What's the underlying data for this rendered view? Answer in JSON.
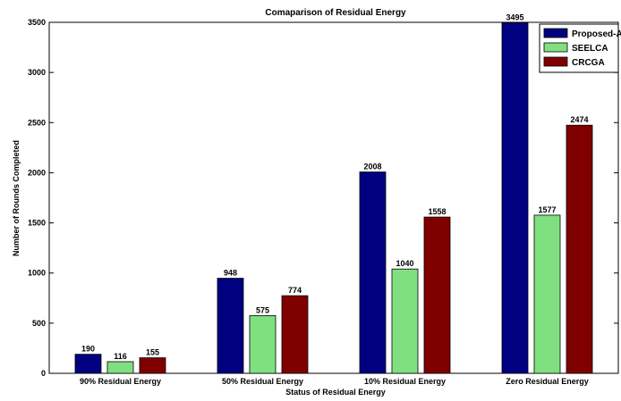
{
  "chart_data": {
    "type": "bar",
    "title": "Comaparison of Residual Energy",
    "xlabel": "Status of Residual Energy",
    "ylabel": "Number of Rounds Completed",
    "categories": [
      "90% Residual Energy",
      "50% Residual Energy",
      "10% Residual Energy",
      "Zero Residual Energy"
    ],
    "ylim": [
      0,
      3500
    ],
    "yticks": [
      0,
      500,
      1000,
      1500,
      2000,
      2500,
      3000,
      3500
    ],
    "ytick_labels": [
      "0",
      "500",
      "1000",
      "1500",
      "2000",
      "2500",
      "3000",
      "3500"
    ],
    "legend_position": "top-right",
    "grid": false,
    "series": [
      {
        "name": "Proposed-AHDR",
        "color": "#000080",
        "values": [
          190,
          948,
          2008,
          3495
        ],
        "labels": [
          "190",
          "948",
          "2008",
          "3495"
        ]
      },
      {
        "name": "SEELCA",
        "color": "#80e080",
        "values": [
          116,
          575,
          1040,
          1577
        ],
        "labels": [
          "116",
          "575",
          "1040",
          "1577"
        ]
      },
      {
        "name": "CRCGA",
        "color": "#800000",
        "values": [
          155,
          774,
          1558,
          2474
        ],
        "labels": [
          "155",
          "774",
          "1558",
          "2474"
        ]
      }
    ]
  }
}
